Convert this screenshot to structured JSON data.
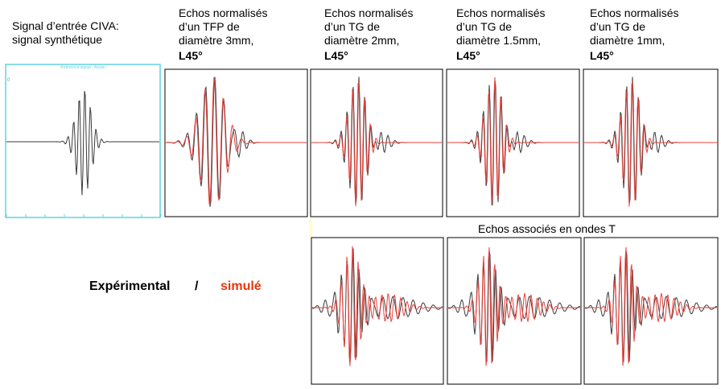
{
  "input_label": {
    "line1": "Signal d’entrée CIVA:",
    "line2": "signal synthétique"
  },
  "reference_plot": {
    "title": "Reference signal - Ascan",
    "axis_label": "0"
  },
  "panels": [
    {
      "lines": [
        "Echos normalisés",
        "d’un TFP de",
        "diamètre 3mm,"
      ],
      "emphasis": "L45°"
    },
    {
      "lines": [
        "Echos normalisés",
        "d’un TG de",
        "diamètre 2mm,"
      ],
      "emphasis": "L45°"
    },
    {
      "lines": [
        "Echos normalisés",
        "d’un TG de",
        "diamètre 1.5mm,"
      ],
      "emphasis": "L45°"
    },
    {
      "lines": [
        "Echos normalisés",
        "d’un TG de",
        "diamètre 1mm,"
      ],
      "emphasis": "L45°"
    }
  ],
  "t_wave_caption": "Echos associés en ondes T",
  "legend": {
    "experimental": "Expérimental",
    "separator": "/",
    "simulated": "simulé"
  }
}
